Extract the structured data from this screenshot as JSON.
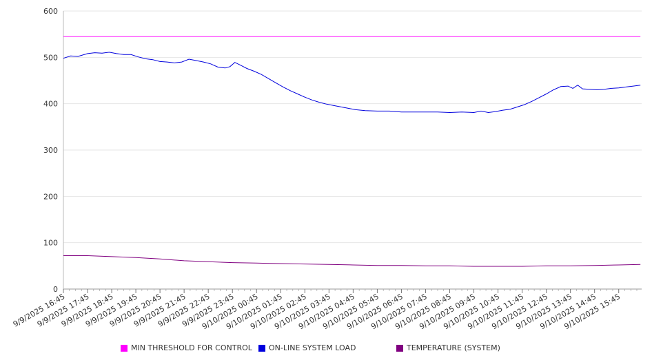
{
  "chart_data": {
    "type": "line",
    "title": "",
    "xlabel": "",
    "ylabel": "",
    "ylim": [
      0,
      600
    ],
    "yticks": [
      "0",
      "100",
      "200",
      "300",
      "400",
      "500",
      "600"
    ],
    "x_tick_labels": [
      "9/9/2025 16:45",
      "9/9/2025 17:45",
      "9/9/2025 18:45",
      "9/9/2025 19:45",
      "9/9/2025 20:45",
      "9/9/2025 21:45",
      "9/9/2025 22:45",
      "9/9/2025 23:45",
      "9/10/2025 00:45",
      "9/10/2025 01:45",
      "9/10/2025 02:45",
      "9/10/2025 03:45",
      "9/10/2025 04:45",
      "9/10/2025 05:45",
      "9/10/2025 06:45",
      "9/10/2025 07:45",
      "9/10/2025 08:45",
      "9/10/2025 09:45",
      "9/10/2025 10:45",
      "9/10/2025 11:45",
      "9/10/2025 12:45",
      "9/10/2025 13:45",
      "9/10/2025 14:45",
      "9/10/2025 15:45"
    ],
    "x_unit": "hours after 9/9/2025 16:45",
    "grid": "horizontal",
    "legend_position": "bottom",
    "series": [
      {
        "name": "MIN THRESHOLD FOR CONTROL",
        "color": "#ff00ff",
        "points": [
          [
            0,
            545
          ],
          [
            23.9,
            545
          ]
        ]
      },
      {
        "name": "ON-LINE SYSTEM LOAD",
        "color": "#0000dd",
        "points": [
          [
            0,
            498
          ],
          [
            0.3,
            503
          ],
          [
            0.6,
            502
          ],
          [
            1,
            508
          ],
          [
            1.3,
            510
          ],
          [
            1.6,
            509
          ],
          [
            1.9,
            511
          ],
          [
            2.2,
            508
          ],
          [
            2.5,
            506
          ],
          [
            2.8,
            506
          ],
          [
            3.1,
            501
          ],
          [
            3.4,
            497
          ],
          [
            3.7,
            495
          ],
          [
            4,
            491
          ],
          [
            4.3,
            490
          ],
          [
            4.6,
            488
          ],
          [
            4.9,
            490
          ],
          [
            5.2,
            496
          ],
          [
            5.5,
            493
          ],
          [
            5.8,
            490
          ],
          [
            6.1,
            486
          ],
          [
            6.4,
            479
          ],
          [
            6.7,
            477
          ],
          [
            6.9,
            480
          ],
          [
            7.1,
            489
          ],
          [
            7.3,
            484
          ],
          [
            7.6,
            476
          ],
          [
            7.9,
            470
          ],
          [
            8.2,
            463
          ],
          [
            8.5,
            454
          ],
          [
            8.8,
            445
          ],
          [
            9.1,
            436
          ],
          [
            9.4,
            428
          ],
          [
            9.7,
            421
          ],
          [
            10,
            414
          ],
          [
            10.3,
            408
          ],
          [
            10.6,
            403
          ],
          [
            10.9,
            399
          ],
          [
            11.2,
            396
          ],
          [
            11.5,
            393
          ],
          [
            11.8,
            390
          ],
          [
            12.1,
            387
          ],
          [
            12.5,
            385
          ],
          [
            13,
            384
          ],
          [
            13.5,
            384
          ],
          [
            14,
            382
          ],
          [
            14.5,
            382
          ],
          [
            15,
            382
          ],
          [
            15.5,
            382
          ],
          [
            16,
            381
          ],
          [
            16.5,
            382
          ],
          [
            17,
            381
          ],
          [
            17.3,
            384
          ],
          [
            17.6,
            381
          ],
          [
            17.9,
            383
          ],
          [
            18.2,
            386
          ],
          [
            18.5,
            388
          ],
          [
            18.8,
            393
          ],
          [
            19.1,
            398
          ],
          [
            19.4,
            405
          ],
          [
            19.7,
            413
          ],
          [
            20,
            421
          ],
          [
            20.3,
            430
          ],
          [
            20.6,
            437
          ],
          [
            20.9,
            438
          ],
          [
            21.1,
            433
          ],
          [
            21.3,
            440
          ],
          [
            21.5,
            432
          ],
          [
            21.8,
            431
          ],
          [
            22.1,
            430
          ],
          [
            22.4,
            431
          ],
          [
            22.7,
            433
          ],
          [
            23,
            434
          ],
          [
            23.3,
            436
          ],
          [
            23.6,
            438
          ],
          [
            23.9,
            440
          ]
        ]
      },
      {
        "name": "TEMPERATURE (SYSTEM)",
        "color": "#800080",
        "points": [
          [
            0,
            72
          ],
          [
            1,
            72
          ],
          [
            2,
            70
          ],
          [
            3,
            68
          ],
          [
            4,
            65
          ],
          [
            5,
            61
          ],
          [
            6,
            59
          ],
          [
            7,
            57
          ],
          [
            8,
            56
          ],
          [
            9,
            55
          ],
          [
            10,
            54
          ],
          [
            11,
            53
          ],
          [
            12,
            52
          ],
          [
            13,
            51
          ],
          [
            14,
            51
          ],
          [
            15,
            50
          ],
          [
            16,
            50
          ],
          [
            17,
            49
          ],
          [
            18,
            49
          ],
          [
            19,
            49
          ],
          [
            20,
            50
          ],
          [
            21,
            50
          ],
          [
            22,
            51
          ],
          [
            23,
            52
          ],
          [
            23.9,
            53
          ]
        ]
      }
    ]
  }
}
